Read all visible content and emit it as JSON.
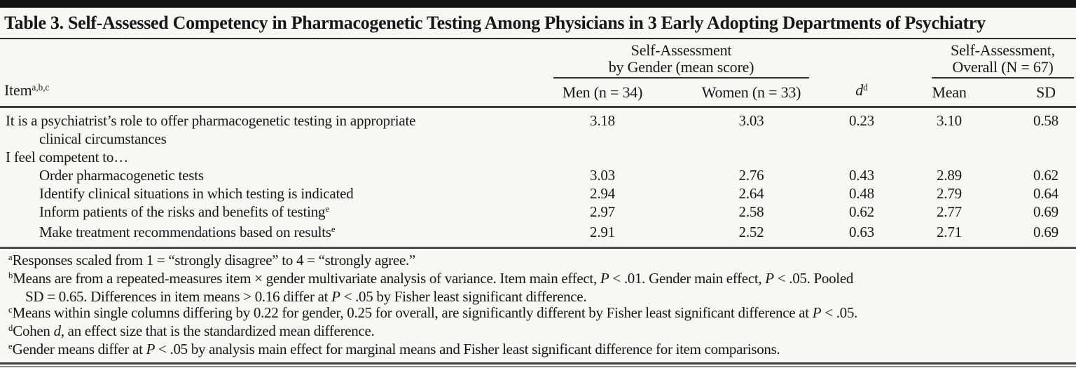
{
  "title": "Table 3. Self-Assessed Competency in Pharmacogenetic Testing Among Physicians in 3 Early Adopting Departments of Psychiatry",
  "header": {
    "item_label": "Item",
    "item_sup": "a,b,c",
    "gender_group_line1": "Self-Assessment",
    "gender_group_line2": "by Gender (mean score)",
    "col_men": "Men (n = 34)",
    "col_women": "Women (n = 33)",
    "col_d": "d",
    "col_d_sup": "d",
    "overall_group_line1": "Self-Assessment,",
    "overall_group_line2": "Overall (N = 67)",
    "col_mean": "Mean",
    "col_sd": "SD"
  },
  "rows": [
    {
      "item": "It is a psychiatrist’s role to offer pharmacogenetic testing in appropriate\nclinical circumstances",
      "sup": "",
      "indent": 0,
      "men": "3.18",
      "women": "3.03",
      "d": "0.23",
      "mean": "3.10",
      "sd": "0.58"
    },
    {
      "item": "I feel competent to…",
      "sup": "",
      "indent": 0,
      "men": "",
      "women": "",
      "d": "",
      "mean": "",
      "sd": ""
    },
    {
      "item": "Order pharmacogenetic tests",
      "sup": "",
      "indent": 1,
      "men": "3.03",
      "women": "2.76",
      "d": "0.43",
      "mean": "2.89",
      "sd": "0.62"
    },
    {
      "item": "Identify clinical situations in which testing is indicated",
      "sup": "",
      "indent": 1,
      "men": "2.94",
      "women": "2.64",
      "d": "0.48",
      "mean": "2.79",
      "sd": "0.64"
    },
    {
      "item": "Inform patients of the risks and benefits of testing",
      "sup": "e",
      "indent": 1,
      "men": "2.97",
      "women": "2.58",
      "d": "0.62",
      "mean": "2.77",
      "sd": "0.69"
    },
    {
      "item": "Make treatment recommendations based on results",
      "sup": "e",
      "indent": 1,
      "men": "2.91",
      "women": "2.52",
      "d": "0.63",
      "mean": "2.71",
      "sd": "0.69"
    }
  ],
  "footnotes": [
    {
      "marker": "a",
      "runs": [
        {
          "t": "Responses scaled from 1 = “strongly disagree” to 4 = “strongly agree.”"
        }
      ]
    },
    {
      "marker": "b",
      "runs": [
        {
          "t": "Means are from a repeated-measures item × gender multivariate analysis of variance. Item main effect, "
        },
        {
          "t": "P",
          "i": true
        },
        {
          "t": " < .01. Gender main effect, "
        },
        {
          "t": "P",
          "i": true
        },
        {
          "t": " < .05. Pooled\nSD = 0.65. Differences in item means > 0.16 differ at "
        },
        {
          "t": "P",
          "i": true
        },
        {
          "t": " < .05 by Fisher least significant difference."
        }
      ]
    },
    {
      "marker": "c",
      "runs": [
        {
          "t": "Means within single columns differing by 0.22 for gender, 0.25 for overall, are significantly different by Fisher least significant difference at "
        },
        {
          "t": "P",
          "i": true
        },
        {
          "t": " < .05."
        }
      ]
    },
    {
      "marker": "d",
      "runs": [
        {
          "t": "Cohen "
        },
        {
          "t": "d",
          "i": true
        },
        {
          "t": ", an effect size that is the standardized mean difference."
        }
      ]
    },
    {
      "marker": "e",
      "runs": [
        {
          "t": "Gender means differ at "
        },
        {
          "t": "P",
          "i": true
        },
        {
          "t": " < .05 by analysis main effect for marginal means and Fisher least significant difference for item comparisons."
        }
      ]
    }
  ],
  "colors": {
    "background": "#f8f7f4",
    "text": "#171717",
    "rule_heavy": "#141414",
    "rule_medium": "#3a3a3a",
    "rule_light": "#8f8f8f"
  }
}
